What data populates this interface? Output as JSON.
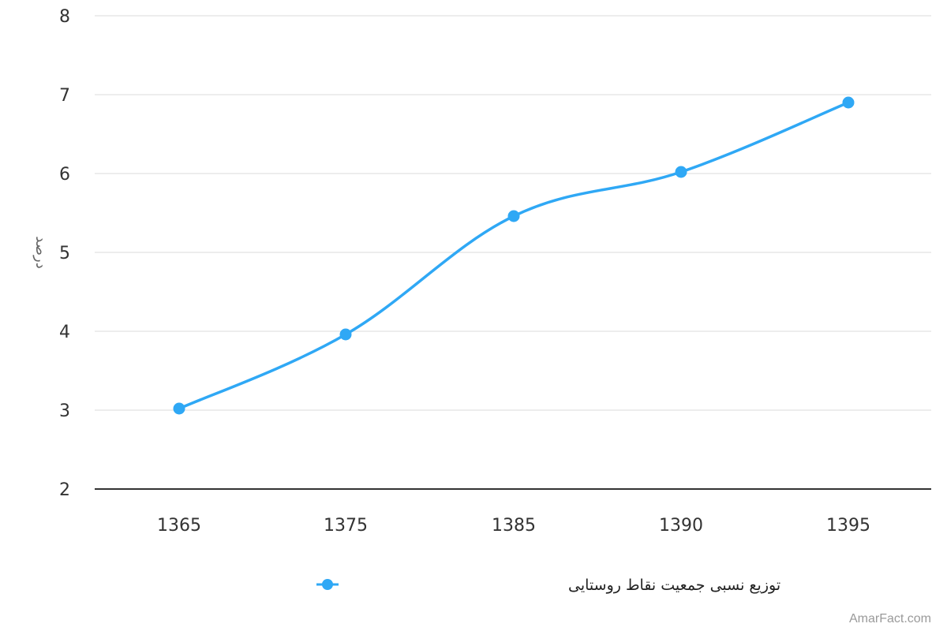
{
  "chart_data": {
    "type": "line",
    "title": "",
    "xlabel": "",
    "ylabel": "درصد",
    "categories": [
      "1365",
      "1375",
      "1385",
      "1390",
      "1395"
    ],
    "series": [
      {
        "name": "توزیع نسبی جمعیت نقاط روستایی",
        "values": [
          3.02,
          3.96,
          5.46,
          6.02,
          6.9
        ],
        "color": "#2fa8f5"
      }
    ],
    "ylim": [
      2,
      8
    ],
    "yticks": [
      "2",
      "3",
      "4",
      "5",
      "6",
      "7",
      "8"
    ],
    "grid": true,
    "legend": "bottom-center",
    "smooth": true
  },
  "watermark": "AmarFact.com"
}
